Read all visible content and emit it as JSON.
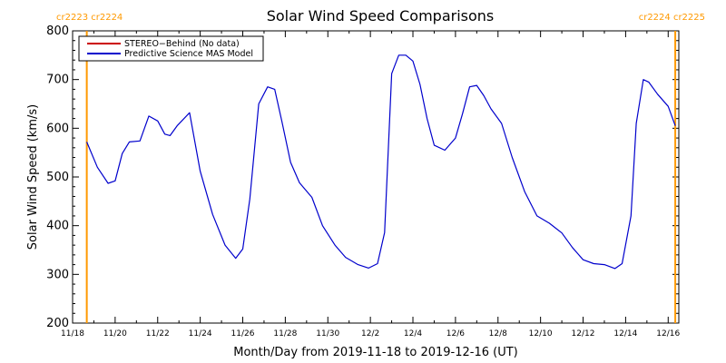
{
  "chart_data": {
    "type": "line",
    "title": "Solar Wind Speed Comparisons",
    "xlabel": "Month/Day from 2019-11-18 to 2019-12-16 (UT)",
    "ylabel": "Solar Wind Speed (km/s)",
    "xlim": [
      "2019-11-18",
      "2019-12-16 12:00"
    ],
    "ylim": [
      200,
      800
    ],
    "x_tick_labels": [
      "11/18",
      "11/20",
      "11/22",
      "11/24",
      "11/26",
      "11/28",
      "11/30",
      "12/2",
      "12/4",
      "12/6",
      "12/8",
      "12/10",
      "12/12",
      "12/14",
      "12/16"
    ],
    "y_ticks": [
      200,
      300,
      400,
      500,
      600,
      700,
      800
    ],
    "y_tick_labels": [
      "200",
      "300",
      "400",
      "500",
      "600",
      "700",
      "800"
    ],
    "legend_position": "top-left",
    "carrington_markers": [
      {
        "date": "2019-11-18 16:00",
        "label_left": "cr2223",
        "label_right": "cr2224",
        "label_side": "left"
      },
      {
        "date": "2019-12-16 08:00",
        "label_left": "cr2224",
        "label_right": "cr2225",
        "label_side": "right"
      }
    ],
    "marker_color": "#ff9900",
    "series": [
      {
        "name": "STEREO−Behind (No data)",
        "color": "#cc0000",
        "x": [],
        "values": []
      },
      {
        "name": "Predictive Science MAS Model",
        "color": "#0000cc",
        "x": [
          "2019-11-18 16:00",
          "2019-11-19 04:00",
          "2019-11-19 16:00",
          "2019-11-20 00:00",
          "2019-11-20 08:00",
          "2019-11-20 16:00",
          "2019-11-21 04:00",
          "2019-11-21 14:00",
          "2019-11-22 00:00",
          "2019-11-22 08:00",
          "2019-11-22 14:00",
          "2019-11-22 22:00",
          "2019-11-23 12:00",
          "2019-11-24 00:00",
          "2019-11-24 14:00",
          "2019-11-25 04:00",
          "2019-11-25 16:00",
          "2019-11-26 00:00",
          "2019-11-26 08:00",
          "2019-11-26 18:00",
          "2019-11-27 04:00",
          "2019-11-27 12:00",
          "2019-11-27 20:00",
          "2019-11-28 06:00",
          "2019-11-28 16:00",
          "2019-11-29 06:00",
          "2019-11-29 18:00",
          "2019-11-30 08:00",
          "2019-11-30 20:00",
          "2019-12-01 10:00",
          "2019-12-01 22:00",
          "2019-12-02 08:00",
          "2019-12-02 16:00",
          "2019-12-03 00:00",
          "2019-12-03 08:00",
          "2019-12-03 16:00",
          "2019-12-04 00:00",
          "2019-12-04 08:00",
          "2019-12-04 16:00",
          "2019-12-05 00:00",
          "2019-12-05 12:00",
          "2019-12-06 00:00",
          "2019-12-06 08:00",
          "2019-12-06 16:00",
          "2019-12-07 00:00",
          "2019-12-07 08:00",
          "2019-12-07 16:00",
          "2019-12-08 04:00",
          "2019-12-08 16:00",
          "2019-12-09 06:00",
          "2019-12-09 20:00",
          "2019-12-10 10:00",
          "2019-12-11 00:00",
          "2019-12-11 12:00",
          "2019-12-12 00:00",
          "2019-12-12 12:00",
          "2019-12-13 00:00",
          "2019-12-13 12:00",
          "2019-12-13 20:00",
          "2019-12-14 06:00",
          "2019-12-14 12:00",
          "2019-12-14 20:00",
          "2019-12-15 02:00",
          "2019-12-15 12:00",
          "2019-12-16 00:00",
          "2019-12-16 08:00"
        ],
        "values": [
          572,
          520,
          487,
          492,
          548,
          572,
          574,
          625,
          615,
          588,
          585,
          605,
          632,
          512,
          423,
          360,
          333,
          352,
          455,
          650,
          685,
          680,
          615,
          530,
          488,
          458,
          400,
          360,
          335,
          320,
          313,
          322,
          386,
          712,
          750,
          750,
          738,
          690,
          620,
          565,
          555,
          580,
          630,
          685,
          688,
          667,
          640,
          610,
          540,
          470,
          420,
          405,
          385,
          355,
          330,
          322,
          320,
          312,
          322,
          420,
          610,
          700,
          695,
          670,
          645,
          605
        ]
      }
    ]
  }
}
